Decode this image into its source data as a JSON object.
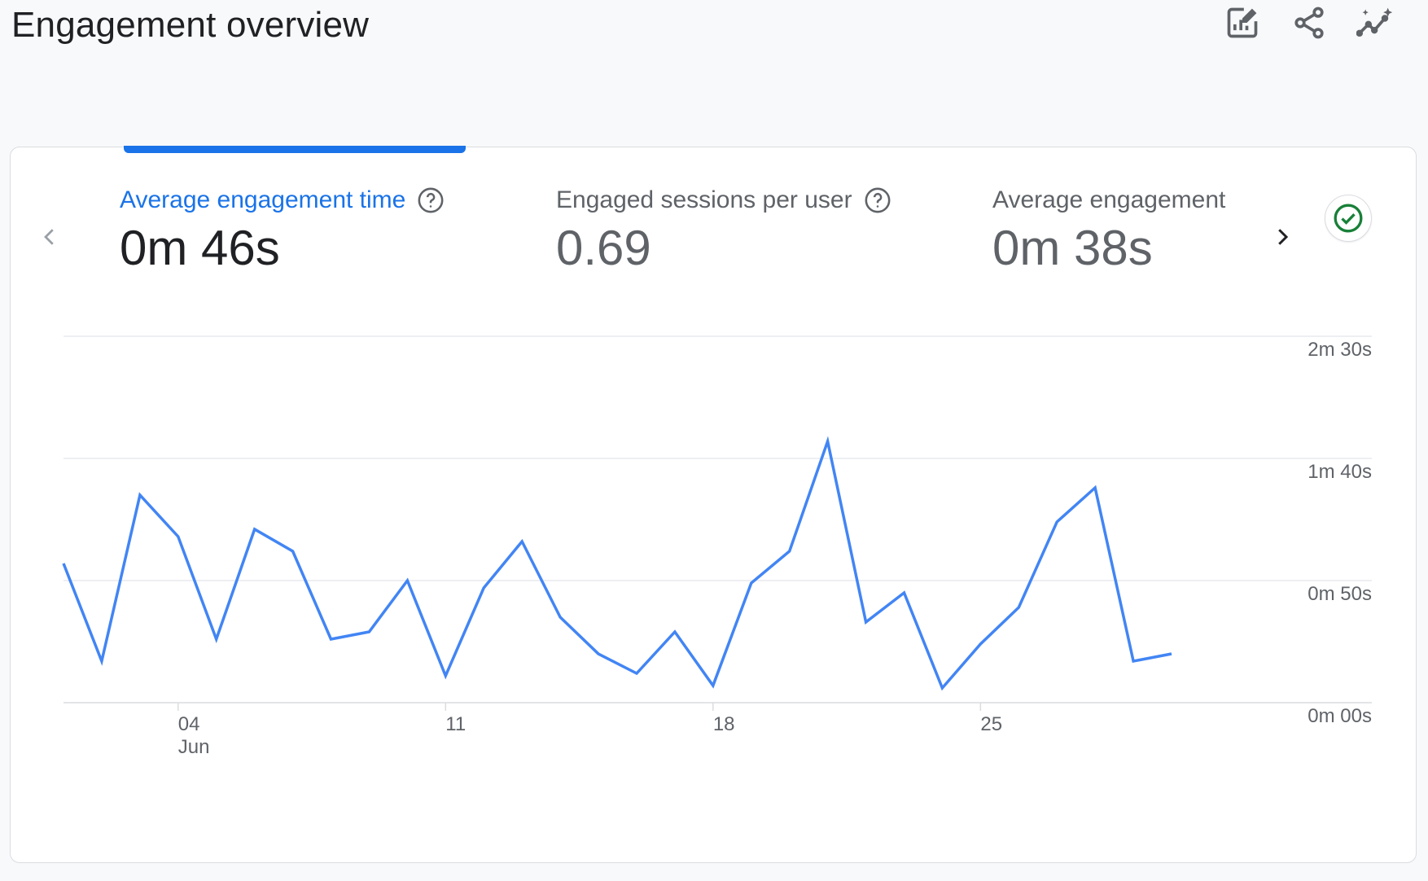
{
  "header": {
    "title": "Engagement overview",
    "actions": [
      {
        "icon": "edit-report-icon"
      },
      {
        "icon": "share-icon"
      },
      {
        "icon": "insights-icon"
      }
    ]
  },
  "metrics": [
    {
      "label": "Average engagement time",
      "value": "0m 46s",
      "active": true,
      "help": true
    },
    {
      "label": "Engaged sessions per user",
      "value": "0.69",
      "active": false,
      "help": true
    },
    {
      "label": "Average engagement",
      "value": "0m 38s",
      "active": false,
      "help": false
    }
  ],
  "colors": {
    "accent": "#1a73e8",
    "line": "#4285f4",
    "success": "#188038"
  },
  "chart_data": {
    "type": "line",
    "ylabel": "",
    "xlabel": "",
    "y_unit": "seconds",
    "ylim": [
      0,
      150
    ],
    "yticks": [
      {
        "value": 0,
        "label": "0m 00s"
      },
      {
        "value": 50,
        "label": "0m 50s"
      },
      {
        "value": 100,
        "label": "1m 40s"
      },
      {
        "value": 150,
        "label": "2m 30s"
      }
    ],
    "x_dates": [
      "2024-06-01",
      "2024-06-02",
      "2024-06-03",
      "2024-06-04",
      "2024-06-05",
      "2024-06-06",
      "2024-06-07",
      "2024-06-08",
      "2024-06-09",
      "2024-06-10",
      "2024-06-11",
      "2024-06-12",
      "2024-06-13",
      "2024-06-14",
      "2024-06-15",
      "2024-06-16",
      "2024-06-17",
      "2024-06-18",
      "2024-06-19",
      "2024-06-20",
      "2024-06-21",
      "2024-06-22",
      "2024-06-23",
      "2024-06-24",
      "2024-06-25",
      "2024-06-26",
      "2024-06-27",
      "2024-06-28",
      "2024-06-29",
      "2024-06-30"
    ],
    "xticks": [
      {
        "index": 3,
        "label": "04",
        "sublabel": "Jun"
      },
      {
        "index": 10,
        "label": "11",
        "sublabel": ""
      },
      {
        "index": 17,
        "label": "18",
        "sublabel": ""
      },
      {
        "index": 24,
        "label": "25",
        "sublabel": ""
      }
    ],
    "series": [
      {
        "values": [
          57,
          17,
          85,
          68,
          26,
          71,
          62,
          26,
          29,
          50,
          11,
          47,
          66,
          35,
          20,
          12,
          29,
          7,
          49,
          62,
          107,
          33,
          45,
          6,
          24,
          39,
          74,
          88,
          17,
          20
        ]
      }
    ],
    "grid": true
  }
}
